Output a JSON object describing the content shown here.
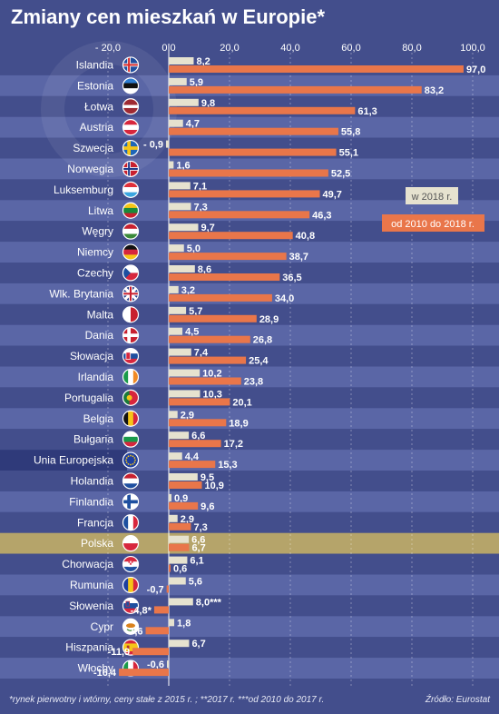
{
  "title": "Zmiany cen mieszkań w Europie*",
  "footnote": "*rynek pierwotny i wtórny, ceny stałe z 2015 r. ; **2017 r. ***od 2010 do 2017 r.",
  "source": "Źródło: Eurostat",
  "colors": {
    "background": "#434e8c",
    "band_alt": "#5a66a6",
    "highlight_row": "#b5a46a",
    "eu_row": "#2f3a7a",
    "bar_2018": "#e6e2cf",
    "bar_2010_2018": "#e9764a",
    "axis_text": "#ffffff"
  },
  "chart_data": {
    "type": "bar",
    "orientation": "horizontal",
    "xlim": [
      -20,
      100
    ],
    "xticks": [
      "- 20,0",
      "0,0",
      "20,0",
      "40,0",
      "60,0",
      "80,0",
      "100,0"
    ],
    "tick_values": [
      -20,
      0,
      20,
      40,
      60,
      80,
      100
    ],
    "legend_position": "right",
    "series": [
      {
        "name": "w 2018 r.",
        "key": "y2018"
      },
      {
        "name": "od 2010 do 2018 r.",
        "key": "y2010_2018"
      }
    ],
    "rows": [
      {
        "country": "Islandia",
        "y2018": 8.2,
        "y2018_label": "8,2",
        "y2010_2018": 97.0,
        "y2010_2018_label": "97,0",
        "flag": "iceland-flag"
      },
      {
        "country": "Estonia",
        "y2018": 5.9,
        "y2018_label": "5,9",
        "y2010_2018": 83.2,
        "y2010_2018_label": "83,2",
        "flag": "estonia-flag"
      },
      {
        "country": "Łotwa",
        "y2018": 9.8,
        "y2018_label": "9,8",
        "y2010_2018": 61.3,
        "y2010_2018_label": "61,3",
        "flag": "latvia-flag"
      },
      {
        "country": "Austria",
        "y2018": 4.7,
        "y2018_label": "4,7",
        "y2010_2018": 55.8,
        "y2010_2018_label": "55,8",
        "flag": "austria-flag"
      },
      {
        "country": "Szwecja",
        "y2018": -0.9,
        "y2018_label": "- 0,9",
        "y2010_2018": 55.1,
        "y2010_2018_label": "55,1",
        "flag": "sweden-flag"
      },
      {
        "country": "Norwegia",
        "y2018": 1.6,
        "y2018_label": "1,6",
        "y2010_2018": 52.5,
        "y2010_2018_label": "52,5",
        "flag": "norway-flag"
      },
      {
        "country": "Luksemburg",
        "y2018": 7.1,
        "y2018_label": "7,1",
        "y2010_2018": 49.7,
        "y2010_2018_label": "49,7",
        "flag": "luxembourg-flag"
      },
      {
        "country": "Litwa",
        "y2018": 7.3,
        "y2018_label": "7,3",
        "y2010_2018": 46.3,
        "y2010_2018_label": "46,3",
        "flag": "lithuania-flag"
      },
      {
        "country": "Węgry",
        "y2018": 9.7,
        "y2018_label": "9,7",
        "y2010_2018": 40.8,
        "y2010_2018_label": "40,8",
        "flag": "hungary-flag"
      },
      {
        "country": "Niemcy",
        "y2018": 5.0,
        "y2018_label": "5,0",
        "y2010_2018": 38.7,
        "y2010_2018_label": "38,7",
        "flag": "germany-flag"
      },
      {
        "country": "Czechy",
        "y2018": 8.6,
        "y2018_label": "8,6",
        "y2010_2018": 36.5,
        "y2010_2018_label": "36,5",
        "flag": "czechia-flag"
      },
      {
        "country": "Wlk. Brytania",
        "y2018": 3.2,
        "y2018_label": "3,2",
        "y2010_2018": 34.0,
        "y2010_2018_label": "34,0",
        "flag": "uk-flag"
      },
      {
        "country": "Malta",
        "y2018": 5.7,
        "y2018_label": "5,7",
        "y2010_2018": 28.9,
        "y2010_2018_label": "28,9",
        "flag": "malta-flag"
      },
      {
        "country": "Dania",
        "y2018": 4.5,
        "y2018_label": "4,5",
        "y2010_2018": 26.8,
        "y2010_2018_label": "26,8",
        "flag": "denmark-flag"
      },
      {
        "country": "Słowacja",
        "y2018": 7.4,
        "y2018_label": "7,4",
        "y2010_2018": 25.4,
        "y2010_2018_label": "25,4",
        "flag": "slovakia-flag"
      },
      {
        "country": "Irlandia",
        "y2018": 10.2,
        "y2018_label": "10,2",
        "y2010_2018": 23.8,
        "y2010_2018_label": "23,8",
        "flag": "ireland-flag"
      },
      {
        "country": "Portugalia",
        "y2018": 10.3,
        "y2018_label": "10,3",
        "y2010_2018": 20.1,
        "y2010_2018_label": "20,1",
        "flag": "portugal-flag"
      },
      {
        "country": "Belgia",
        "y2018": 2.9,
        "y2018_label": "2,9",
        "y2010_2018": 18.9,
        "y2010_2018_label": "18,9",
        "flag": "belgium-flag"
      },
      {
        "country": "Bułgaria",
        "y2018": 6.6,
        "y2018_label": "6,6",
        "y2010_2018": 17.2,
        "y2010_2018_label": "17,2",
        "flag": "bulgaria-flag"
      },
      {
        "country": "Unia Europejska",
        "y2018": 4.4,
        "y2018_label": "4,4",
        "y2010_2018": 15.3,
        "y2010_2018_label": "15,3",
        "flag": "eu-flag"
      },
      {
        "country": "Holandia",
        "y2018": 9.5,
        "y2018_label": "9,5",
        "y2010_2018": 10.9,
        "y2010_2018_label": "10,9",
        "flag": "netherlands-flag"
      },
      {
        "country": "Finlandia",
        "y2018": 0.9,
        "y2018_label": "0,9",
        "y2010_2018": 9.6,
        "y2010_2018_label": "9,6",
        "flag": "finland-flag"
      },
      {
        "country": "Francja",
        "y2018": 2.9,
        "y2018_label": "2,9",
        "y2010_2018": 7.3,
        "y2010_2018_label": "7,3",
        "flag": "france-flag"
      },
      {
        "country": "Polska",
        "y2018": 6.6,
        "y2018_label": "6,6",
        "y2010_2018": 6.7,
        "y2010_2018_label": "6,7",
        "flag": "poland-flag"
      },
      {
        "country": "Chorwacja",
        "y2018": 6.1,
        "y2018_label": "6,1",
        "y2010_2018": 0.6,
        "y2010_2018_label": "0,6",
        "flag": "croatia-flag"
      },
      {
        "country": "Rumunia",
        "y2018": 5.6,
        "y2018_label": "5,6",
        "y2010_2018": -0.7,
        "y2010_2018_label": "-0,7",
        "flag": "romania-flag"
      },
      {
        "country": "Słowenia",
        "y2018": 8.0,
        "y2018_label": "8,0***",
        "y2010_2018": -4.8,
        "y2010_2018_label": "-4,8*",
        "flag": "slovenia-flag"
      },
      {
        "country": "Cypr",
        "y2018": 1.8,
        "y2018_label": "1,8",
        "y2010_2018": -7.6,
        "y2010_2018_label": "-7,6",
        "flag": "cyprus-flag"
      },
      {
        "country": "Hiszpania",
        "y2018": 6.7,
        "y2018_label": "6,7",
        "y2010_2018": -11.9,
        "y2010_2018_label": "-11,9",
        "flag": "spain-flag"
      },
      {
        "country": "Włochy",
        "y2018": -0.6,
        "y2018_label": "-0,6",
        "y2010_2018": -16.4,
        "y2010_2018_label": "-16,4",
        "flag": "italy-flag"
      }
    ]
  }
}
